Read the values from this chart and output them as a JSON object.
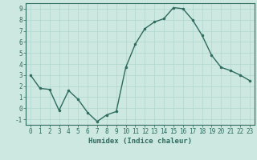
{
  "x": [
    0,
    1,
    2,
    3,
    4,
    5,
    6,
    7,
    8,
    9,
    10,
    11,
    12,
    13,
    14,
    15,
    16,
    17,
    18,
    19,
    20,
    21,
    22,
    23
  ],
  "y": [
    3,
    1.8,
    1.7,
    -0.2,
    1.6,
    0.8,
    -0.4,
    -1.2,
    -0.6,
    -0.3,
    3.7,
    5.8,
    7.2,
    7.8,
    8.1,
    9.1,
    9.0,
    8.0,
    6.6,
    4.8,
    3.7,
    3.4,
    3.0,
    2.5
  ],
  "line_color": "#2e6b5e",
  "marker": "o",
  "markersize": 2.0,
  "linewidth": 1.0,
  "xlabel": "Humidex (Indice chaleur)",
  "xlabel_fontsize": 6.5,
  "ylim": [
    -1.5,
    9.5
  ],
  "xlim": [
    -0.5,
    23.5
  ],
  "yticks": [
    -1,
    0,
    1,
    2,
    3,
    4,
    5,
    6,
    7,
    8,
    9
  ],
  "xticks": [
    0,
    1,
    2,
    3,
    4,
    5,
    6,
    7,
    8,
    9,
    10,
    11,
    12,
    13,
    14,
    15,
    16,
    17,
    18,
    19,
    20,
    21,
    22,
    23
  ],
  "grid_color": "#b0d8d0",
  "background_color": "#cce8e0",
  "tick_color": "#2e6b5e",
  "tick_fontsize": 5.5,
  "spine_color": "#2e6b5e"
}
